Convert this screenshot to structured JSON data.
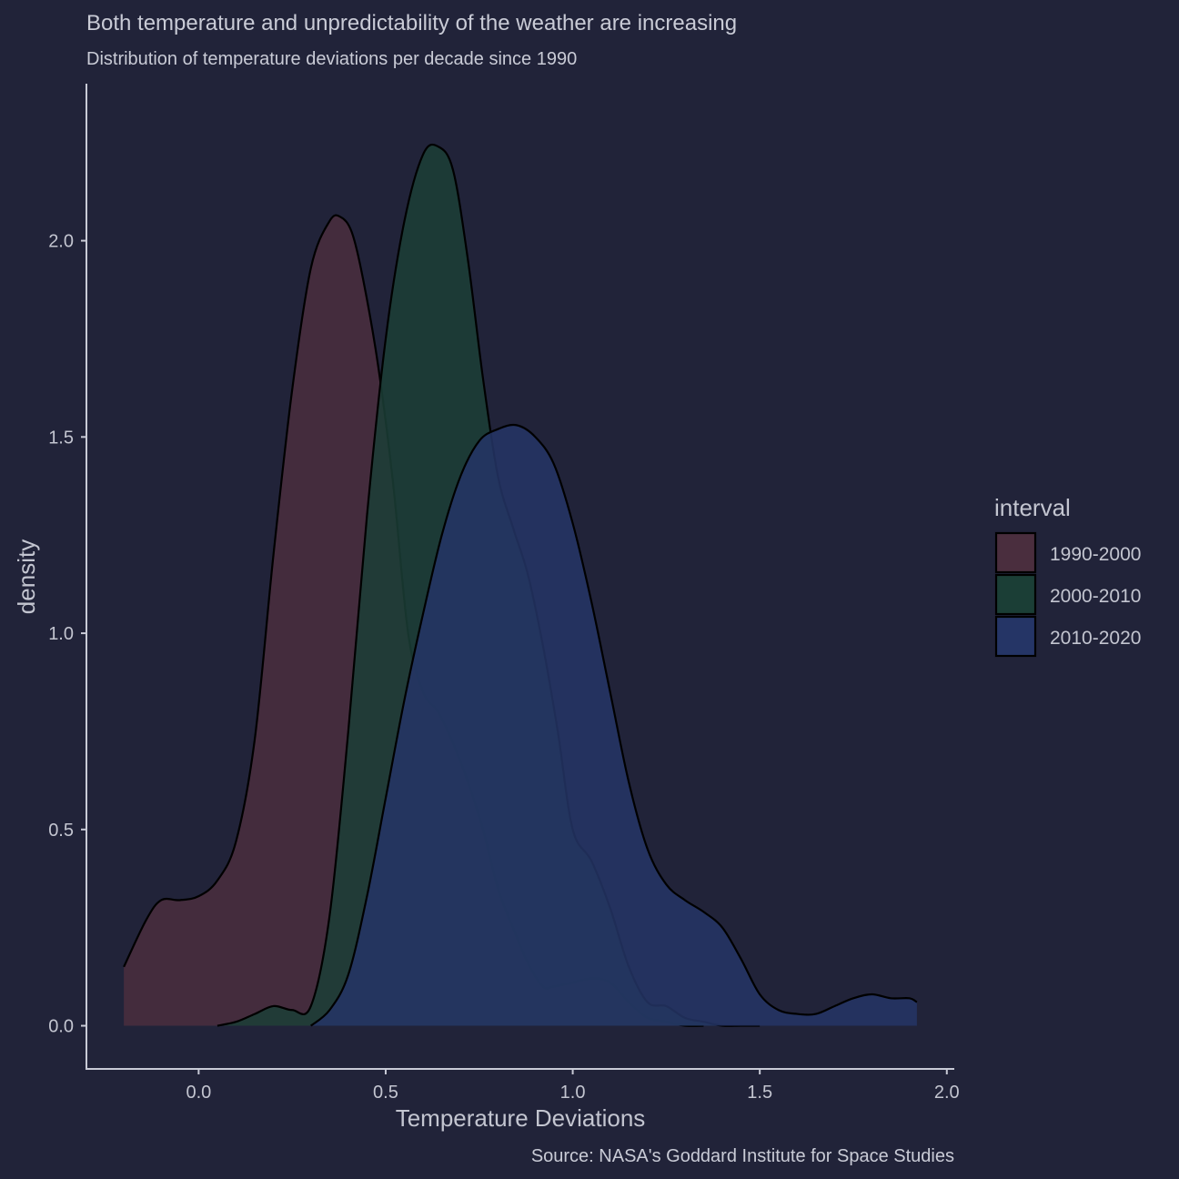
{
  "chart_data": {
    "type": "area",
    "title": "Both temperature and unpredictability of the weather are increasing",
    "subtitle": "Distribution of temperature deviations per decade since 1990",
    "caption": "Source: NASA's Goddard Institute for Space Studies",
    "xlabel": "Temperature Deviations",
    "ylabel": "density",
    "xlim": [
      -0.3,
      2.02
    ],
    "ylim": [
      -0.11,
      2.4
    ],
    "x_ticks": [
      "0.0",
      "0.5",
      "1.0",
      "1.5",
      "2.0"
    ],
    "y_ticks": [
      "0.0",
      "0.5",
      "1.0",
      "1.5",
      "2.0"
    ],
    "grid": false,
    "legend": {
      "title": "interval",
      "position": "right"
    },
    "series": [
      {
        "name": "1990-2000",
        "color": "#4a2e3e",
        "x": [
          -0.2,
          -0.14,
          -0.1,
          -0.05,
          0.0,
          0.05,
          0.1,
          0.15,
          0.2,
          0.25,
          0.3,
          0.35,
          0.38,
          0.41,
          0.44,
          0.48,
          0.52,
          0.56,
          0.6,
          0.64,
          0.68,
          0.72,
          0.76,
          0.8,
          0.84,
          0.88,
          0.92,
          0.95,
          1.0,
          1.05,
          1.1,
          1.15,
          1.2,
          1.25,
          1.3,
          1.35
        ],
        "y": [
          0.15,
          0.27,
          0.32,
          0.32,
          0.33,
          0.37,
          0.47,
          0.73,
          1.2,
          1.62,
          1.93,
          2.05,
          2.06,
          2.02,
          1.9,
          1.68,
          1.38,
          1.0,
          0.85,
          0.8,
          0.72,
          0.62,
          0.5,
          0.35,
          0.25,
          0.16,
          0.1,
          0.1,
          0.11,
          0.12,
          0.11,
          0.06,
          0.02,
          0.01,
          0.0,
          0.0
        ]
      },
      {
        "name": "2000-2010",
        "color": "#1b3e36",
        "x": [
          0.05,
          0.1,
          0.15,
          0.2,
          0.25,
          0.3,
          0.35,
          0.4,
          0.45,
          0.5,
          0.55,
          0.6,
          0.64,
          0.68,
          0.72,
          0.76,
          0.8,
          0.84,
          0.88,
          0.92,
          0.96,
          1.0,
          1.05,
          1.1,
          1.15,
          1.2,
          1.25,
          1.3,
          1.35,
          1.4,
          1.45,
          1.5
        ],
        "y": [
          0.0,
          0.01,
          0.03,
          0.05,
          0.04,
          0.05,
          0.28,
          0.75,
          1.3,
          1.75,
          2.05,
          2.22,
          2.24,
          2.18,
          1.95,
          1.65,
          1.4,
          1.27,
          1.15,
          0.97,
          0.75,
          0.5,
          0.42,
          0.3,
          0.15,
          0.06,
          0.05,
          0.02,
          0.01,
          0.0,
          0.0,
          0.0
        ]
      },
      {
        "name": "2010-2020",
        "color": "#253566",
        "x": [
          0.3,
          0.35,
          0.4,
          0.45,
          0.5,
          0.55,
          0.6,
          0.65,
          0.7,
          0.75,
          0.8,
          0.85,
          0.9,
          0.95,
          1.0,
          1.05,
          1.1,
          1.15,
          1.2,
          1.25,
          1.3,
          1.35,
          1.4,
          1.45,
          1.5,
          1.55,
          1.6,
          1.65,
          1.7,
          1.75,
          1.8,
          1.85,
          1.9,
          1.92
        ],
        "y": [
          0.0,
          0.04,
          0.13,
          0.33,
          0.58,
          0.83,
          1.05,
          1.25,
          1.4,
          1.49,
          1.52,
          1.53,
          1.5,
          1.43,
          1.28,
          1.08,
          0.85,
          0.62,
          0.45,
          0.36,
          0.32,
          0.29,
          0.25,
          0.17,
          0.08,
          0.04,
          0.03,
          0.03,
          0.05,
          0.07,
          0.08,
          0.07,
          0.07,
          0.06
        ]
      }
    ]
  }
}
